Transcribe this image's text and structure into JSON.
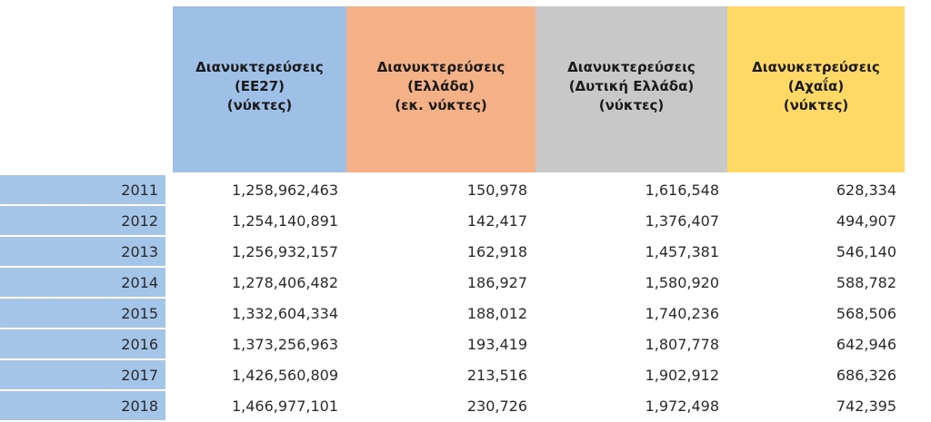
{
  "table": {
    "headers": [
      {
        "lines": [
          "Διανυκτερεύσεις",
          "(ΕΕ27)",
          "(νύκτες)"
        ],
        "color": "#9fc0e6"
      },
      {
        "lines": [
          "Διανυκτερεύσεις",
          "(Ελλάδα)",
          "(εκ. νύκτες)"
        ],
        "color": "#f4b086"
      },
      {
        "lines": [
          "Διανυκτερεύσεις",
          "(Δυτική Ελλάδα)",
          "(νύκτες)"
        ],
        "color": "#c8c8c8"
      },
      {
        "lines": [
          "Διανυκετρεύσεις",
          "(Αχαΐα)",
          "(νύκτες)"
        ],
        "color": "#ffd866"
      }
    ],
    "year_column_color": "#a4c4e8",
    "rows": [
      {
        "year": "2011",
        "values": [
          "1,258,962,463",
          "150,978",
          "1,616,548",
          "628,334"
        ]
      },
      {
        "year": "2012",
        "values": [
          "1,254,140,891",
          "142,417",
          "1,376,407",
          "494,907"
        ]
      },
      {
        "year": "2013",
        "values": [
          "1,256,932,157",
          "162,918",
          "1,457,381",
          "546,140"
        ]
      },
      {
        "year": "2014",
        "values": [
          "1,278,406,482",
          "186,927",
          "1,580,920",
          "588,782"
        ]
      },
      {
        "year": "2015",
        "values": [
          "1,332,604,334",
          "188,012",
          "1,740,236",
          "568,506"
        ]
      },
      {
        "year": "2016",
        "values": [
          "1,373,256,963",
          "193,419",
          "1,807,778",
          "642,946"
        ]
      },
      {
        "year": "2017",
        "values": [
          "1,426,560,809",
          "213,516",
          "1,902,912",
          "686,326"
        ]
      },
      {
        "year": "2018",
        "values": [
          "1,466,977,101",
          "230,726",
          "1,972,498",
          "742,395"
        ]
      }
    ]
  }
}
